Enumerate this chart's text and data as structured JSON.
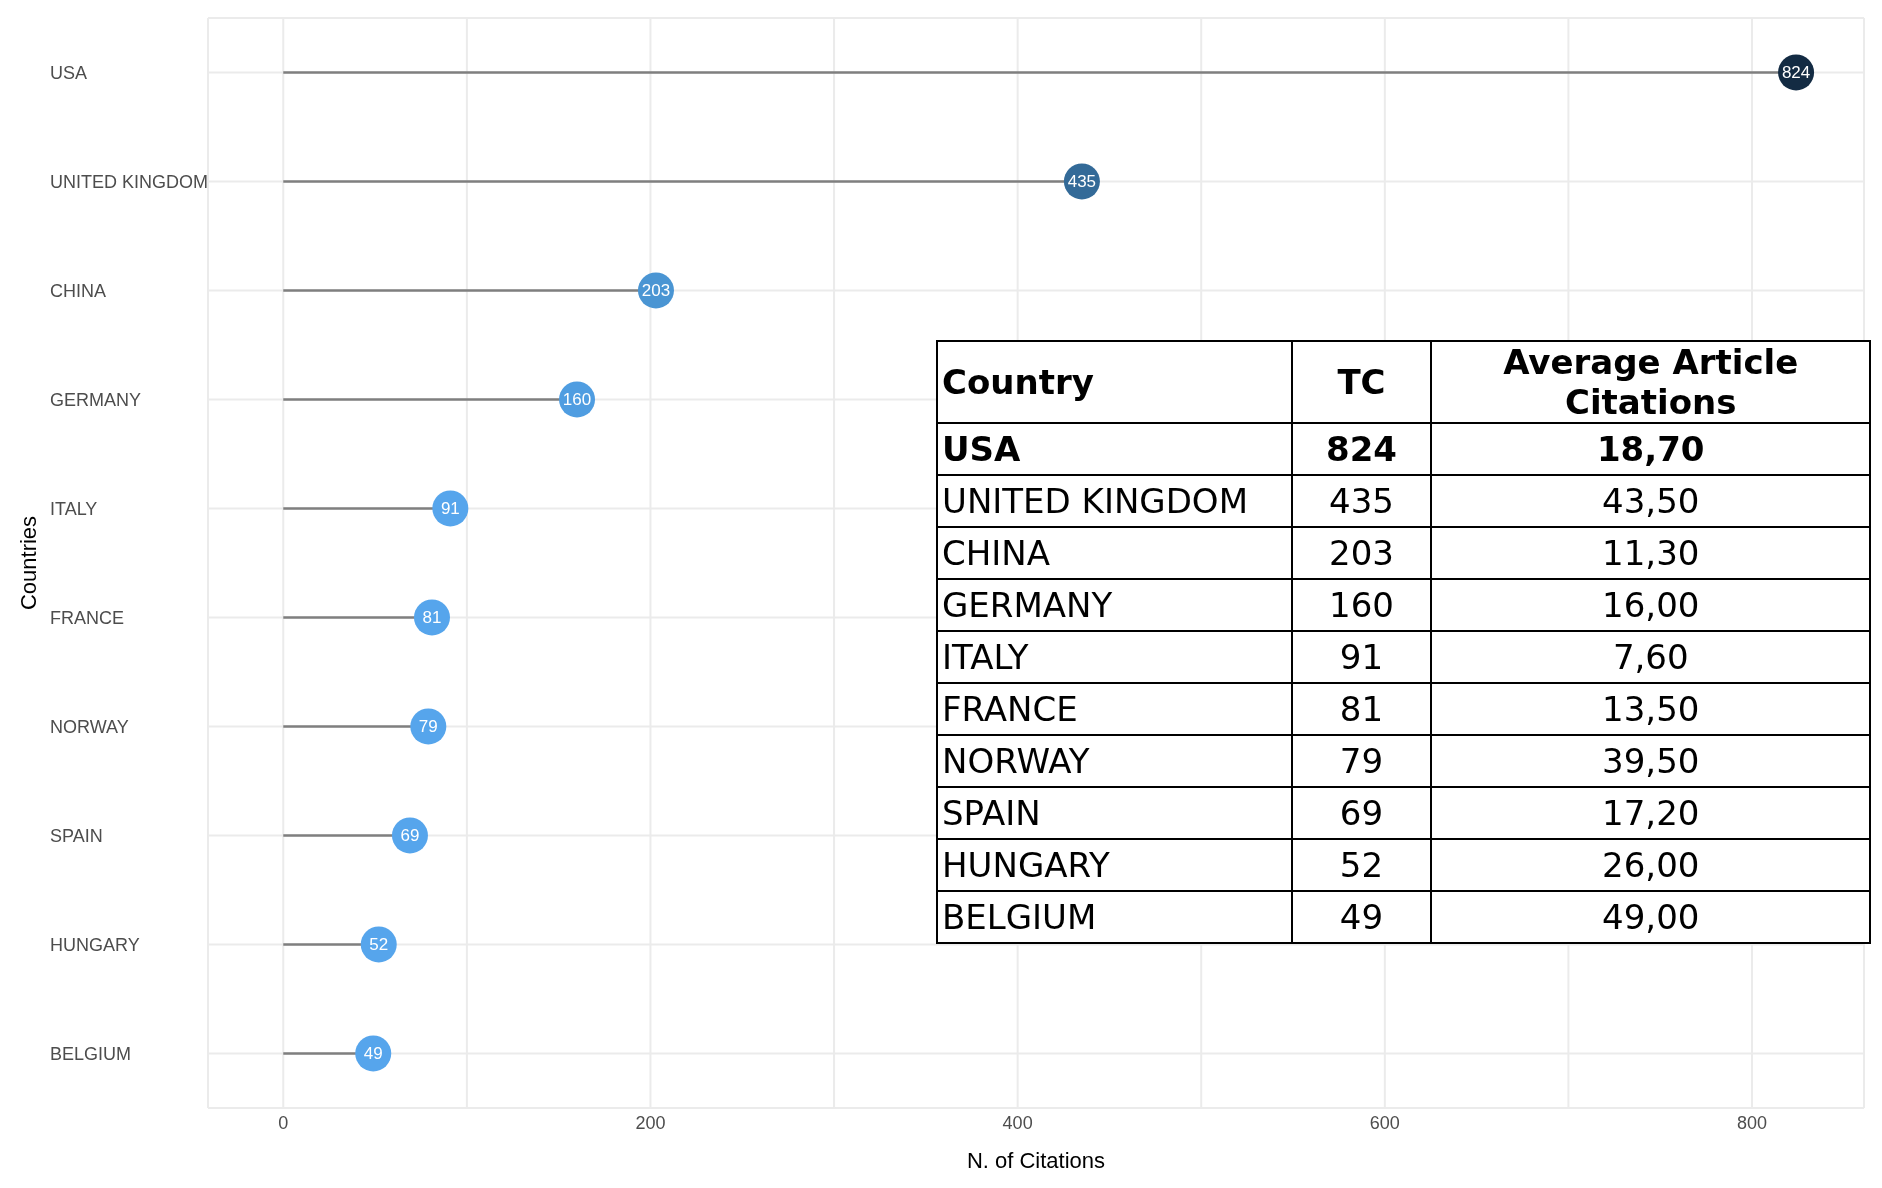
{
  "chart_data": [
    {
      "type": "lollipop",
      "orientation": "horizontal",
      "xlabel": "N. of Citations",
      "ylabel": "Countries",
      "categories": [
        "USA",
        "UNITED KINGDOM",
        "CHINA",
        "GERMANY",
        "ITALY",
        "FRANCE",
        "NORWAY",
        "SPAIN",
        "HUNGARY",
        "BELGIUM"
      ],
      "values": [
        824,
        435,
        203,
        160,
        91,
        81,
        79,
        69,
        52,
        49
      ],
      "colors": [
        "#132b43",
        "#336a98",
        "#4a95d3",
        "#4f9de1",
        "#56a5ec",
        "#56a5ec",
        "#56a5ec",
        "#56a5ec",
        "#56a5ec",
        "#56a5ec"
      ],
      "xlim": [
        -41,
        861
      ],
      "xticks": [
        0,
        {
          "value": 100,
          "label": null
        },
        200,
        {
          "value": 300,
          "label": null
        },
        400,
        {
          "value": 500,
          "label": null
        },
        600,
        {
          "value": 700,
          "label": null
        },
        800
      ],
      "grid": true,
      "data_labels": true
    },
    {
      "type": "other",
      "annotations": [
        "Country",
        "TC",
        "Average Article Citations",
        "USA",
        "824",
        "18,70",
        "UNITED KINGDOM",
        "435",
        "43,50",
        "CHINA",
        "203",
        "11,30",
        "GERMANY",
        "160",
        "16,00",
        "ITALY",
        "91",
        "7,60",
        "FRANCE",
        "81",
        "13,50",
        "NORWAY",
        "79",
        "39,50",
        "SPAIN",
        "69",
        "17,20",
        "HUNGARY",
        "52",
        "26,00",
        "BELGIUM",
        "49",
        "49,00"
      ]
    }
  ]
}
